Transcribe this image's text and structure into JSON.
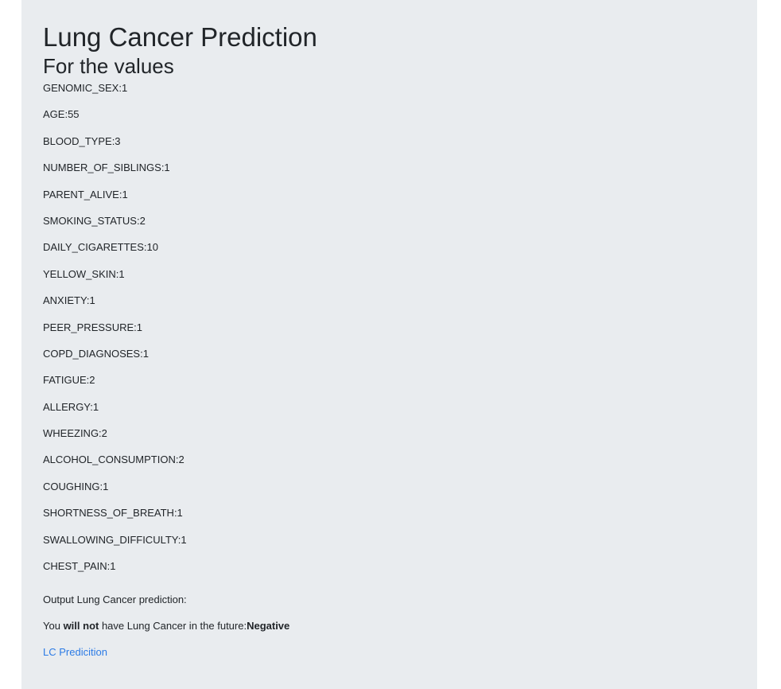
{
  "title": "Lung Cancer Prediction",
  "subtitle": "For the values",
  "values": [
    "GENOMIC_SEX:1",
    "AGE:55",
    "BLOOD_TYPE:3",
    "NUMBER_OF_SIBLINGS:1",
    "PARENT_ALIVE:1",
    "SMOKING_STATUS:2",
    "DAILY_CIGARETTES:10",
    "YELLOW_SKIN:1",
    "ANXIETY:1",
    "PEER_PRESSURE:1",
    "COPD_DIAGNOSES:1",
    "FATIGUE:2",
    "ALLERGY:1",
    "WHEEZING:2",
    "ALCOHOL_CONSUMPTION:2",
    "COUGHING:1",
    "SHORTNESS_OF_BREATH:1",
    "SWALLOWING_DIFFICULTY:1",
    "CHEST_PAIN:1"
  ],
  "output": {
    "heading": "Output Lung Cancer prediction:",
    "prefix": "You ",
    "emphasis": "will not",
    "middle": " have Lung Cancer in the future:",
    "result": "Negative"
  },
  "link": {
    "label": "LC Predicition"
  }
}
